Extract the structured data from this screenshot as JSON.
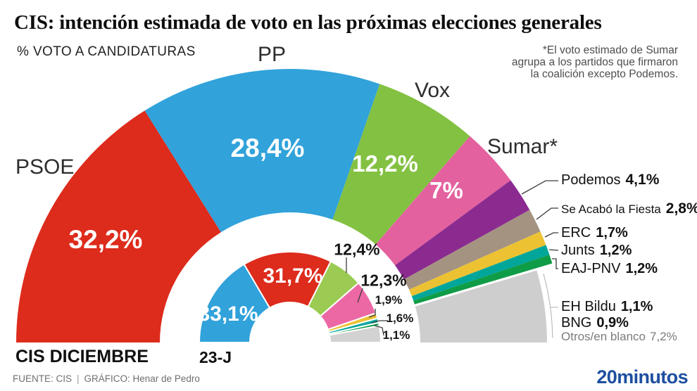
{
  "header": {
    "title": "CIS: intención estimada de voto en las próximas elecciones generales",
    "subtitle": "% VOTO A CANDIDATURAS",
    "note_lines": [
      "*El voto estimado de Sumar",
      "agrupa a los partidos que firmaron",
      "la coalición excepto Podemos."
    ]
  },
  "chart_data": {
    "type": "half-donut",
    "unit": "% voto a candidaturas",
    "rings": [
      {
        "name": "CIS DICIEMBRE",
        "position": "outer",
        "segments": [
          {
            "party": "PSOE",
            "value": 32.2,
            "value_label": "32,2%",
            "name_label": "PSOE",
            "color": "#dd2b1c"
          },
          {
            "party": "PP",
            "value": 28.4,
            "value_label": "28,4%",
            "name_label": "PP",
            "color": "#31a2da"
          },
          {
            "party": "Vox",
            "value": 12.2,
            "value_label": "12,2%",
            "name_label": "Vox",
            "color": "#83c142"
          },
          {
            "party": "Sumar",
            "value": 7,
            "value_label": "7%",
            "name_label": "Sumar*",
            "color": "#e4619f"
          },
          {
            "party": "Podemos",
            "value": 4.1,
            "value_label": "4,1%",
            "color": "#8b2b90"
          },
          {
            "party": "Se Acabó la Fiesta",
            "value": 2.8,
            "value_label": "2,8%",
            "color": "#a59382"
          },
          {
            "party": "ERC",
            "value": 1.7,
            "value_label": "1,7%",
            "color": "#ecc233"
          },
          {
            "party": "Junts",
            "value": 1.2,
            "value_label": "1,2%",
            "color": "#00a69a"
          },
          {
            "party": "EAJ-PNV",
            "value": 1.2,
            "value_label": "1,2%",
            "color": "#0f9c47"
          },
          {
            "party": "Resto",
            "value": 9.2,
            "color": "#cecece",
            "breakdown": [
              {
                "party": "EH Bildu",
                "value": 1.1,
                "value_label": "1,1%"
              },
              {
                "party": "BNG",
                "value": 0.9,
                "value_label": "0,9%"
              },
              {
                "party": "Otros/en blanco",
                "value": 7.2,
                "value_label": "7,2%"
              }
            ]
          }
        ]
      },
      {
        "name": "23-J",
        "position": "inner",
        "segments": [
          {
            "party": "PP",
            "value": 33.1,
            "value_label": "33,1%",
            "color": "#31a2da"
          },
          {
            "party": "PSOE",
            "value": 31.7,
            "value_label": "31,7%",
            "color": "#dd2b1c"
          },
          {
            "party": "Vox",
            "value": 12.4,
            "value_label": "12,4%",
            "color": "#9bcb52"
          },
          {
            "party": "Sumar",
            "value": 12.3,
            "value_label": "12,3%",
            "color": "#ec68a5"
          },
          {
            "party": "ERC",
            "value": 1.9,
            "value_label": "1,9%",
            "color": "#ecc233"
          },
          {
            "party": "Junts",
            "value": 1.6,
            "value_label": "1,6%",
            "color": "#00a69a"
          },
          {
            "party": "EAJ-PNV",
            "value": 1.1,
            "value_label": "1,1%",
            "color": "#0f9c47"
          },
          {
            "party": "Resto",
            "value": 5.9,
            "color": "#d2d2d2"
          }
        ]
      }
    ]
  },
  "footer": {
    "source": "FUENTE: CIS",
    "divider": "|",
    "credit": "GRÁFICO: Henar de Pedro",
    "brand": "20minutos",
    "brand_color": "#1d4fa1"
  }
}
